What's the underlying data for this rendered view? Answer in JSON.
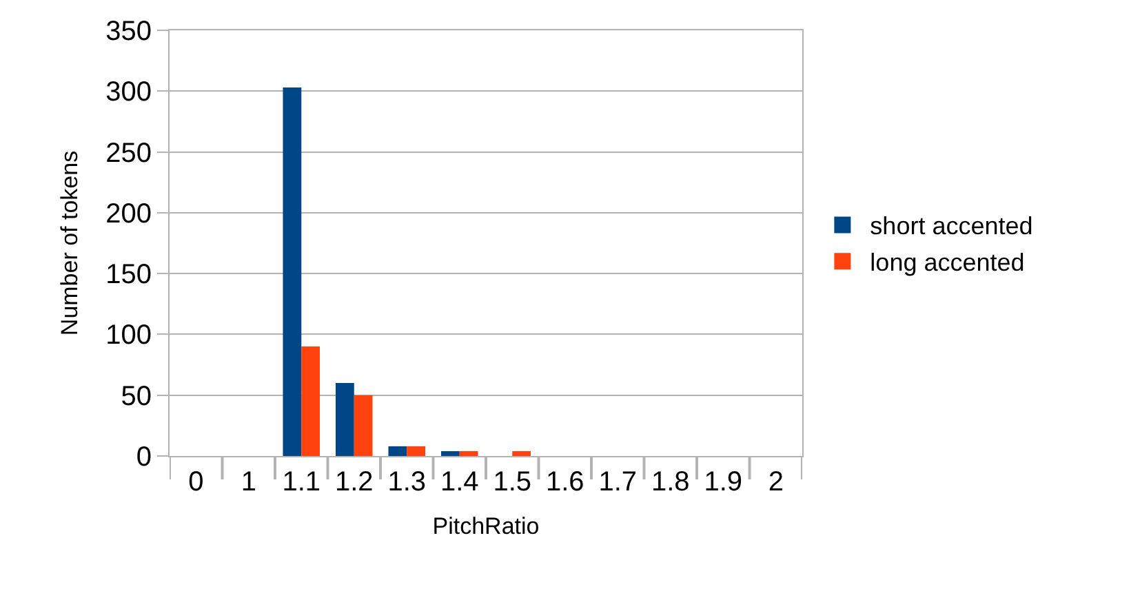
{
  "chart_data": {
    "type": "bar",
    "xlabel": "PitchRatio",
    "ylabel": "Number of tokens",
    "categories": [
      "0",
      "1",
      "1.1",
      "1.2",
      "1.3",
      "1.4",
      "1.5",
      "1.6",
      "1.7",
      "1.8",
      "1.9",
      "2"
    ],
    "series": [
      {
        "name": "short accented",
        "color": "#004586",
        "values": [
          0,
          0,
          303,
          60,
          8,
          4,
          0,
          0,
          0,
          0,
          0,
          0
        ]
      },
      {
        "name": "long accented",
        "color": "#ff420e",
        "values": [
          0,
          0,
          90,
          50,
          8,
          4,
          4,
          0,
          0,
          0,
          0,
          0
        ]
      }
    ],
    "ylim": [
      0,
      350
    ],
    "yticks": [
      0,
      50,
      100,
      150,
      200,
      250,
      300,
      350
    ],
    "grid": "y",
    "legend": "right"
  }
}
